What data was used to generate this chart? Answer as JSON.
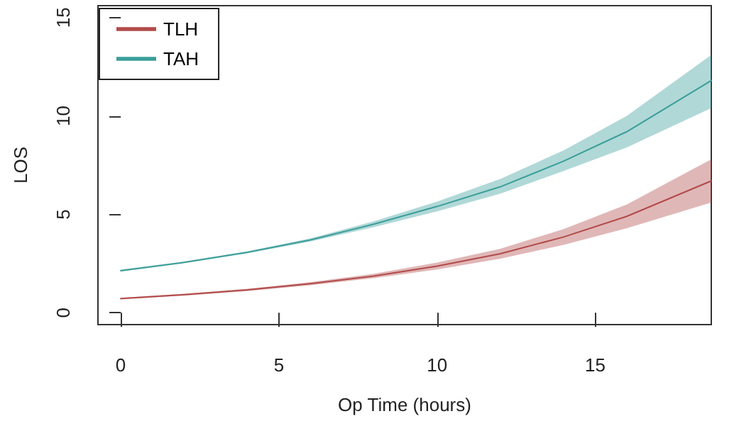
{
  "chart_data": {
    "type": "line",
    "xlabel": "Op Time (hours)",
    "ylabel": "LOS",
    "xlim": [
      -0.72,
      18.67
    ],
    "ylim": [
      -0.6,
      15.6
    ],
    "xticks": [
      0,
      5,
      10,
      15
    ],
    "yticks": [
      0,
      5,
      10,
      15
    ],
    "grid": false,
    "legend": "top left",
    "marker": "none",
    "line_style": "solid",
    "series": [
      {
        "name": "TLH",
        "color": "#b24a4a",
        "x": [
          0,
          2,
          4,
          6,
          8,
          10,
          12,
          14,
          16,
          18.67
        ],
        "values": [
          0.72,
          0.92,
          1.16,
          1.48,
          1.87,
          2.37,
          3.0,
          3.85,
          4.9,
          6.7
        ],
        "lower": [
          0.68,
          0.87,
          1.1,
          1.4,
          1.76,
          2.2,
          2.75,
          3.45,
          4.3,
          5.6
        ],
        "upper": [
          0.76,
          0.97,
          1.22,
          1.56,
          1.98,
          2.55,
          3.25,
          4.25,
          5.5,
          7.8
        ]
      },
      {
        "name": "TAH",
        "color": "#3a9e9a",
        "x": [
          0,
          2,
          4,
          6,
          8,
          10,
          12,
          14,
          16,
          18.67
        ],
        "values": [
          2.14,
          2.56,
          3.07,
          3.7,
          4.5,
          5.4,
          6.4,
          7.7,
          9.2,
          11.8
        ],
        "lower": [
          2.1,
          2.52,
          3.02,
          3.62,
          4.35,
          5.15,
          6.05,
          7.2,
          8.4,
          10.4
        ],
        "upper": [
          2.2,
          2.6,
          3.12,
          3.78,
          4.65,
          5.65,
          6.8,
          8.25,
          10.0,
          13.1
        ]
      }
    ]
  }
}
